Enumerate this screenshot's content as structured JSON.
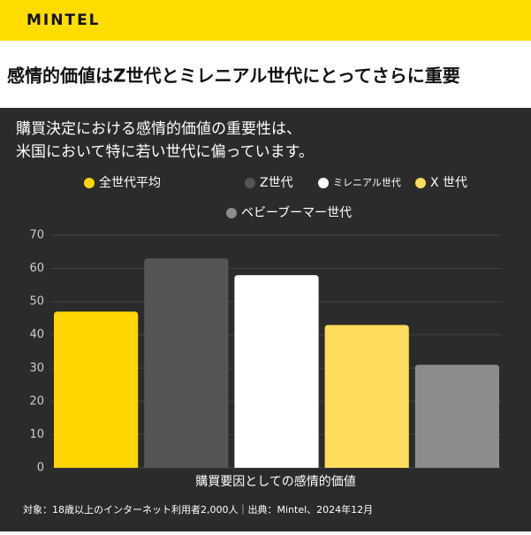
{
  "header": {
    "brand": "MINTEL",
    "title": "感情的価値はZ世代とミレニアル世代にとってさらに重要"
  },
  "chart_data": {
    "type": "bar",
    "subtitle": [
      "購買決定における感情的価値の重要性は、",
      "米国において特に若い世代に偏っています。"
    ],
    "categories": [
      "購買要因としての感情的価値"
    ],
    "series": [
      {
        "name": "全世代平均",
        "color": "#FFD600",
        "values": [
          47
        ]
      },
      {
        "name": "Z世代",
        "color": "#555555",
        "values": [
          63
        ]
      },
      {
        "name": "ミレニアル世代",
        "color": "#FFFFFF",
        "values": [
          58
        ]
      },
      {
        "name": "X 世代",
        "color": "#FFDC5A",
        "values": [
          43
        ]
      },
      {
        "name": "ベビーブーマー世代",
        "color": "#8C8C8C",
        "values": [
          31
        ]
      }
    ],
    "ylim": [
      0,
      70
    ],
    "yticks": [
      0,
      10,
      20,
      30,
      40,
      50,
      60,
      70
    ],
    "grid": true,
    "note": "対象：18歳以上のインターネット利用者2,000人｜出典：Mintel、2024年12月"
  }
}
